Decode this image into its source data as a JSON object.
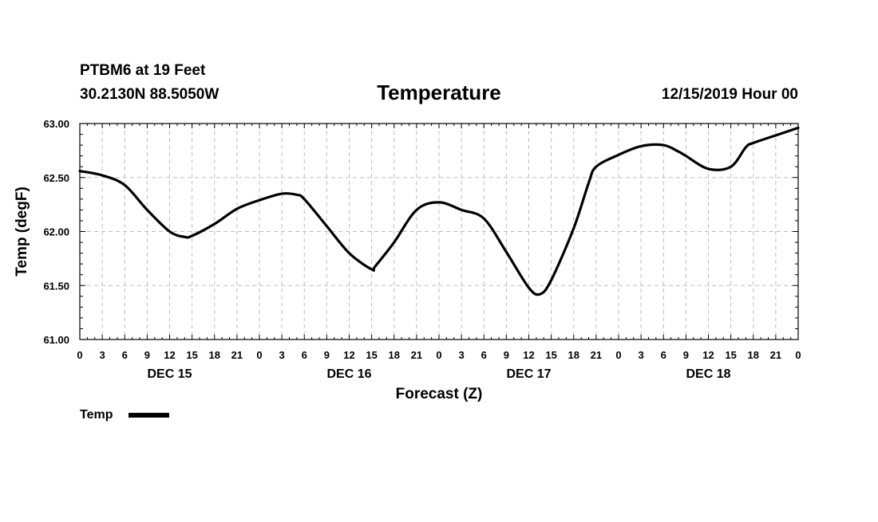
{
  "header": {
    "station": "PTBM6 at 19 Feet",
    "coords": "30.2130N 88.5050W",
    "title": "Temperature",
    "datetime": "12/15/2019 Hour 00"
  },
  "chart_data": {
    "type": "line",
    "title": "Temperature",
    "xlabel": "Forecast (Z)",
    "ylabel": "Temp (degF)",
    "ylim": [
      61.0,
      63.0
    ],
    "xlim": [
      0,
      96
    ],
    "y_ticks": [
      "61.00",
      "61.50",
      "62.00",
      "62.50",
      "63.00"
    ],
    "x_tick_labels": [
      "0",
      "3",
      "6",
      "9",
      "12",
      "15",
      "18",
      "21",
      "0",
      "3",
      "6",
      "9",
      "12",
      "15",
      "18",
      "21",
      "0",
      "3",
      "6",
      "9",
      "12",
      "15",
      "18",
      "21",
      "0",
      "3",
      "6",
      "9",
      "12",
      "15",
      "18",
      "21",
      "0"
    ],
    "x_day_labels": [
      {
        "label": "DEC 15",
        "hour": 12
      },
      {
        "label": "DEC 16",
        "hour": 36
      },
      {
        "label": "DEC 17",
        "hour": 60
      },
      {
        "label": "DEC 18",
        "hour": 84
      }
    ],
    "grid": true,
    "legend": "bottom-left",
    "series": [
      {
        "name": "Temp",
        "color": "#000000",
        "x": [
          0,
          3,
          6,
          9,
          12,
          14,
          15,
          18,
          21,
          24,
          27,
          29,
          30,
          33,
          36,
          39,
          39.5,
          42,
          45,
          48,
          51,
          54,
          57,
          60,
          61.5,
          63,
          66,
          68,
          69,
          72,
          75,
          78,
          80,
          81,
          84,
          87,
          89,
          90,
          93,
          96
        ],
        "y": [
          62.56,
          62.52,
          62.43,
          62.2,
          62.0,
          61.95,
          61.96,
          62.07,
          62.21,
          62.29,
          62.35,
          62.34,
          62.3,
          62.05,
          61.8,
          61.65,
          61.68,
          61.9,
          62.2,
          62.27,
          62.2,
          62.12,
          61.81,
          61.48,
          61.42,
          61.55,
          62.03,
          62.45,
          62.6,
          62.71,
          62.79,
          62.8,
          62.74,
          62.7,
          62.58,
          62.6,
          62.78,
          62.82,
          62.89,
          62.96
        ]
      }
    ]
  }
}
